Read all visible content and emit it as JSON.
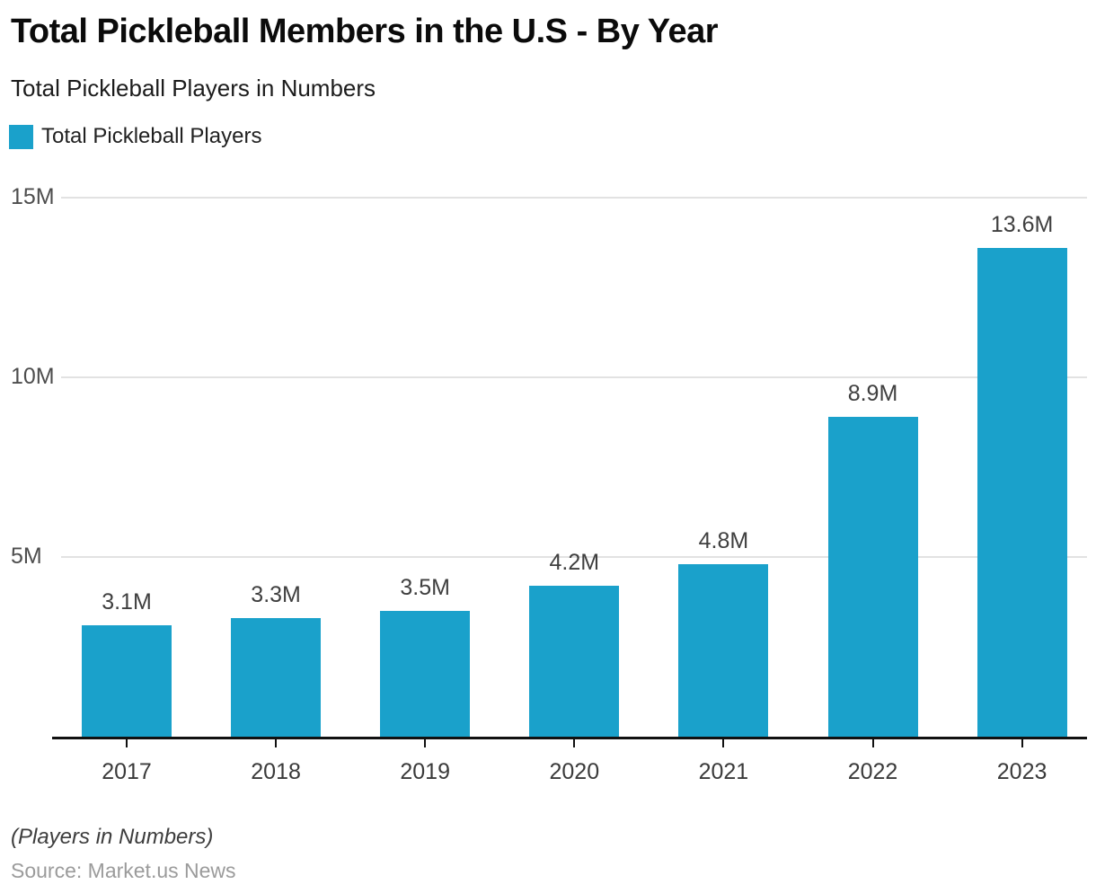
{
  "header": {
    "title": "Total Pickleball Members in the U.S - By Year",
    "subtitle": "Total Pickleball Players in Numbers"
  },
  "legend": {
    "label": "Total Pickleball Players",
    "swatch_color": "#1aa1cb"
  },
  "chart_data": {
    "type": "bar",
    "title": "Total Pickleball Members in the U.S - By Year",
    "subtitle": "Total Pickleball Players in Numbers",
    "series_name": "Total Pickleball Players",
    "categories": [
      "2017",
      "2018",
      "2019",
      "2020",
      "2021",
      "2022",
      "2023"
    ],
    "values": [
      3.1,
      3.3,
      3.5,
      4.2,
      4.8,
      8.9,
      13.6
    ],
    "value_labels": [
      "3.1M",
      "3.3M",
      "3.5M",
      "4.2M",
      "4.8M",
      "8.9M",
      "13.6M"
    ],
    "unit": "millions of players",
    "xlabel": "",
    "ylabel": "",
    "ylim": [
      0,
      15
    ],
    "y_ticks": [
      {
        "value": 5,
        "label": "5M"
      },
      {
        "value": 10,
        "label": "10M"
      },
      {
        "value": 15,
        "label": "15M"
      }
    ],
    "grid": "horizontal",
    "legend_position": "top-left",
    "bar_color": "#1aa1cb"
  },
  "footer": {
    "note": "(Players in Numbers)",
    "source": "Source: Market.us News"
  }
}
